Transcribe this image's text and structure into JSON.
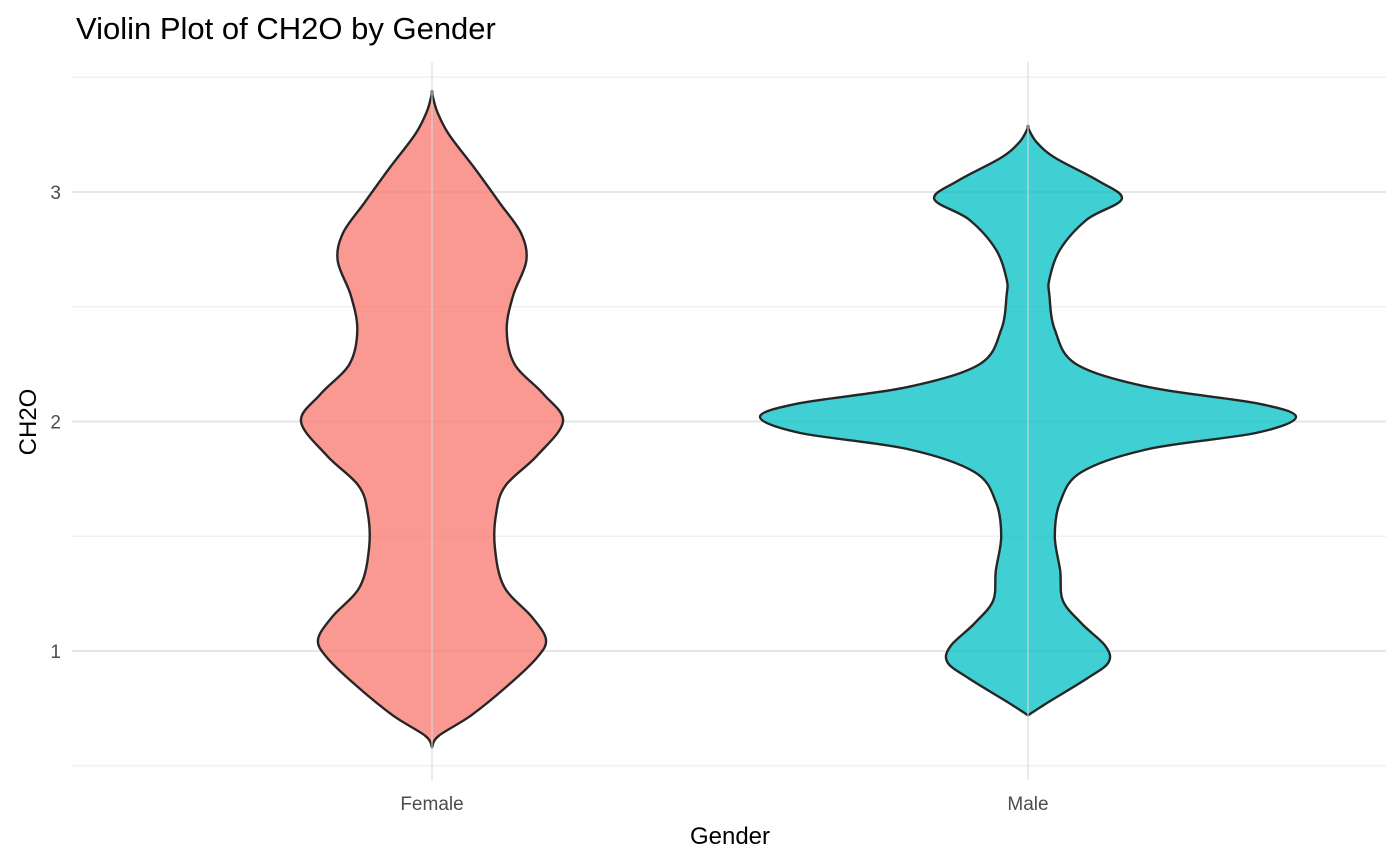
{
  "chart_data": {
    "type": "violin",
    "title": "Violin Plot of CH2O by Gender",
    "xlabel": "Gender",
    "ylabel": "CH2O",
    "categories": [
      "Female",
      "Male"
    ],
    "ylim": [
      0.5,
      3.5
    ],
    "yticks": [
      1,
      2,
      3
    ],
    "grid": true,
    "legend": "none",
    "series": [
      {
        "category": "Female",
        "color": "#F8766D",
        "range": [
          0.58,
          3.43
        ],
        "density": [
          {
            "y": 0.58,
            "w": 0.0
          },
          {
            "y": 0.63,
            "w": 0.05
          },
          {
            "y": 0.72,
            "w": 0.3
          },
          {
            "y": 0.85,
            "w": 0.58
          },
          {
            "y": 0.97,
            "w": 0.8
          },
          {
            "y": 1.05,
            "w": 0.87
          },
          {
            "y": 1.15,
            "w": 0.76
          },
          {
            "y": 1.28,
            "w": 0.55
          },
          {
            "y": 1.45,
            "w": 0.48
          },
          {
            "y": 1.6,
            "w": 0.49
          },
          {
            "y": 1.72,
            "w": 0.56
          },
          {
            "y": 1.85,
            "w": 0.8
          },
          {
            "y": 2.0,
            "w": 1.0
          },
          {
            "y": 2.12,
            "w": 0.85
          },
          {
            "y": 2.25,
            "w": 0.63
          },
          {
            "y": 2.4,
            "w": 0.57
          },
          {
            "y": 2.55,
            "w": 0.62
          },
          {
            "y": 2.7,
            "w": 0.72
          },
          {
            "y": 2.82,
            "w": 0.68
          },
          {
            "y": 2.95,
            "w": 0.52
          },
          {
            "y": 3.1,
            "w": 0.33
          },
          {
            "y": 3.25,
            "w": 0.13
          },
          {
            "y": 3.35,
            "w": 0.04
          },
          {
            "y": 3.43,
            "w": 0.0
          }
        ]
      },
      {
        "category": "Male",
        "color": "#00BFC4",
        "range": [
          0.72,
          3.28
        ],
        "density": [
          {
            "y": 0.72,
            "w": 0.0
          },
          {
            "y": 0.78,
            "w": 0.08
          },
          {
            "y": 0.88,
            "w": 0.22
          },
          {
            "y": 0.95,
            "w": 0.3
          },
          {
            "y": 1.02,
            "w": 0.29
          },
          {
            "y": 1.12,
            "w": 0.2
          },
          {
            "y": 1.22,
            "w": 0.13
          },
          {
            "y": 1.35,
            "w": 0.12
          },
          {
            "y": 1.5,
            "w": 0.1
          },
          {
            "y": 1.65,
            "w": 0.12
          },
          {
            "y": 1.78,
            "w": 0.2
          },
          {
            "y": 1.88,
            "w": 0.45
          },
          {
            "y": 1.95,
            "w": 0.85
          },
          {
            "y": 2.02,
            "w": 1.0
          },
          {
            "y": 2.08,
            "w": 0.85
          },
          {
            "y": 2.15,
            "w": 0.45
          },
          {
            "y": 2.25,
            "w": 0.18
          },
          {
            "y": 2.4,
            "w": 0.1
          },
          {
            "y": 2.55,
            "w": 0.08
          },
          {
            "y": 2.62,
            "w": 0.08
          },
          {
            "y": 2.75,
            "w": 0.12
          },
          {
            "y": 2.88,
            "w": 0.22
          },
          {
            "y": 2.97,
            "w": 0.35
          },
          {
            "y": 3.05,
            "w": 0.26
          },
          {
            "y": 3.15,
            "w": 0.1
          },
          {
            "y": 3.22,
            "w": 0.03
          },
          {
            "y": 3.28,
            "w": 0.0
          }
        ]
      }
    ]
  }
}
